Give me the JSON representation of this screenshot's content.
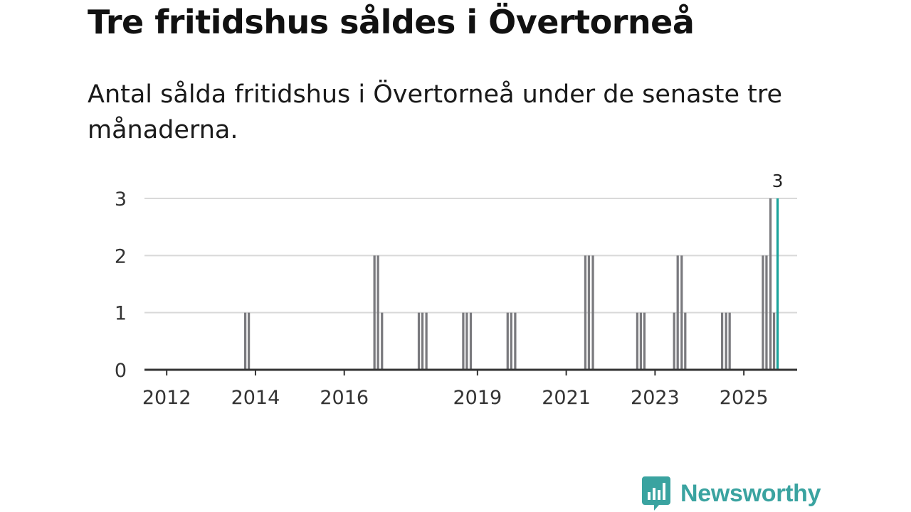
{
  "title": "Tre fritidshus såldes i Övertorneå",
  "subtitle": "Antal sålda fritidshus i Övertorneå under de senaste tre månaderna.",
  "brand": {
    "name": "Newsworthy",
    "color": "#3aa3a0",
    "icon": "newsworthy-bar-chart-icon"
  },
  "colors": {
    "bar": "#7a7a7e",
    "highlight": "#1aa39b",
    "grid": "#d9d9d9",
    "axis": "#333333"
  },
  "chart_data": {
    "type": "bar",
    "title": "Tre fritidshus såldes i Övertorneå",
    "subtitle": "Antal sålda fritidshus i Övertorneå under de senaste tre månaderna.",
    "xlabel": "",
    "ylabel": "",
    "ylim": [
      0,
      3
    ],
    "yticks": [
      0,
      1,
      2,
      3
    ],
    "xlim": [
      2011.5,
      2026.2
    ],
    "xticks": [
      {
        "value": 2012,
        "label": "2012"
      },
      {
        "value": 2014,
        "label": "2014"
      },
      {
        "value": 2016,
        "label": "2016"
      },
      {
        "value": 2019,
        "label": "2019"
      },
      {
        "value": 2021,
        "label": "2021"
      },
      {
        "value": 2023,
        "label": "2023"
      },
      {
        "value": 2025,
        "label": "2025"
      }
    ],
    "grid": true,
    "bar_width_years": 0.052,
    "series": [
      {
        "name": "Sålda fritidshus",
        "points": [
          {
            "t": 2013.77,
            "v": 1
          },
          {
            "t": 2013.85,
            "v": 1
          },
          {
            "t": 2016.68,
            "v": 2
          },
          {
            "t": 2016.76,
            "v": 2
          },
          {
            "t": 2016.85,
            "v": 1
          },
          {
            "t": 2017.68,
            "v": 1
          },
          {
            "t": 2017.76,
            "v": 1
          },
          {
            "t": 2017.85,
            "v": 1
          },
          {
            "t": 2018.68,
            "v": 1
          },
          {
            "t": 2018.76,
            "v": 1
          },
          {
            "t": 2018.85,
            "v": 1
          },
          {
            "t": 2019.68,
            "v": 1
          },
          {
            "t": 2019.76,
            "v": 1
          },
          {
            "t": 2019.85,
            "v": 1
          },
          {
            "t": 2021.43,
            "v": 2
          },
          {
            "t": 2021.51,
            "v": 2
          },
          {
            "t": 2021.6,
            "v": 2
          },
          {
            "t": 2022.6,
            "v": 1
          },
          {
            "t": 2022.68,
            "v": 1
          },
          {
            "t": 2022.76,
            "v": 1
          },
          {
            "t": 2023.43,
            "v": 1
          },
          {
            "t": 2023.51,
            "v": 2
          },
          {
            "t": 2023.6,
            "v": 2
          },
          {
            "t": 2023.68,
            "v": 1
          },
          {
            "t": 2024.51,
            "v": 1
          },
          {
            "t": 2024.6,
            "v": 1
          },
          {
            "t": 2024.68,
            "v": 1
          },
          {
            "t": 2025.43,
            "v": 2
          },
          {
            "t": 2025.51,
            "v": 2
          },
          {
            "t": 2025.6,
            "v": 3
          },
          {
            "t": 2025.68,
            "v": 1
          }
        ]
      },
      {
        "name": "Senaste tre månaderna",
        "highlight": true,
        "points": [
          {
            "t": 2025.76,
            "v": 3
          }
        ]
      }
    ],
    "annotations": [
      {
        "t": 2025.76,
        "v": 3,
        "text": "3"
      }
    ]
  }
}
